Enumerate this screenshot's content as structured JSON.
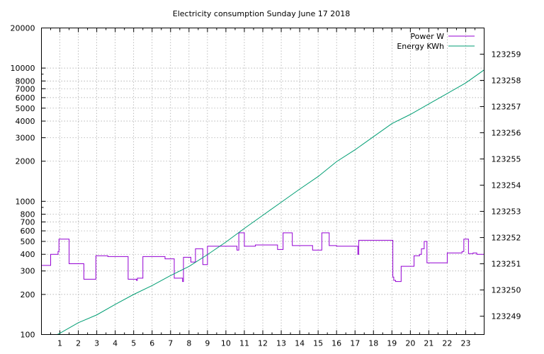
{
  "chart_data": {
    "type": "line",
    "title": "Electricity consumption Sunday June 17 2018",
    "xlabel": "",
    "ylabel": "",
    "y2label": "",
    "xlim": [
      0,
      24
    ],
    "ylim": [
      100,
      20000
    ],
    "yscale": "log",
    "y2lim": [
      123248.3,
      123260
    ],
    "grid": true,
    "legend_position": "top-right",
    "x_ticks": [
      1,
      2,
      3,
      4,
      5,
      6,
      7,
      8,
      9,
      10,
      11,
      12,
      13,
      14,
      15,
      16,
      17,
      18,
      19,
      20,
      21,
      22,
      23
    ],
    "y_ticks": [
      100,
      200,
      300,
      400,
      500,
      600,
      700,
      800,
      1000,
      2000,
      3000,
      4000,
      5000,
      6000,
      7000,
      8000,
      10000,
      20000
    ],
    "y2_ticks": [
      123249,
      123250,
      123251,
      123252,
      123253,
      123254,
      123255,
      123256,
      123257,
      123258,
      123259
    ],
    "series": [
      {
        "name": "Power W",
        "color": "#9400d3",
        "axis": "y",
        "step": true,
        "x": [
          0,
          0.5,
          0.9,
          0.95,
          1.5,
          2.3,
          2.95,
          3.6,
          4.7,
          5.15,
          5.2,
          5.5,
          6.7,
          7.2,
          7.65,
          7.7,
          8.1,
          8.35,
          8.75,
          9.0,
          10.6,
          10.7,
          11.0,
          11.6,
          12.8,
          13.1,
          13.6,
          14.7,
          15.2,
          15.6,
          16.0,
          17.15,
          17.2,
          19.05,
          19.1,
          19.2,
          19.5,
          20.2,
          20.5,
          20.6,
          20.75,
          20.9,
          22.0,
          22.8,
          22.9,
          23.15,
          23.4,
          23.6,
          24.0
        ],
        "y": [
          330,
          400,
          420,
          520,
          340,
          260,
          390,
          385,
          260,
          255,
          265,
          385,
          370,
          265,
          250,
          380,
          350,
          440,
          335,
          460,
          430,
          580,
          460,
          470,
          435,
          580,
          465,
          430,
          580,
          465,
          460,
          400,
          510,
          270,
          255,
          250,
          325,
          390,
          400,
          440,
          500,
          345,
          410,
          420,
          520,
          405,
          410,
          400,
          400
        ]
      },
      {
        "name": "Energy KWh",
        "color": "#009e73",
        "axis": "y2",
        "step": false,
        "x": [
          0,
          1,
          2,
          3,
          4,
          5,
          6,
          7,
          8,
          9,
          10,
          11,
          12,
          13,
          14,
          15,
          16,
          17,
          18,
          19,
          20,
          21,
          22,
          23,
          24
        ],
        "y": [
          123248.0,
          123248.35,
          123248.75,
          123249.05,
          123249.45,
          123249.83,
          123250.17,
          123250.55,
          123250.9,
          123251.35,
          123251.83,
          123252.35,
          123252.85,
          123253.35,
          123253.85,
          123254.33,
          123254.9,
          123255.35,
          123255.85,
          123256.35,
          123256.7,
          123257.1,
          123257.5,
          123257.9,
          123258.4
        ]
      }
    ]
  }
}
